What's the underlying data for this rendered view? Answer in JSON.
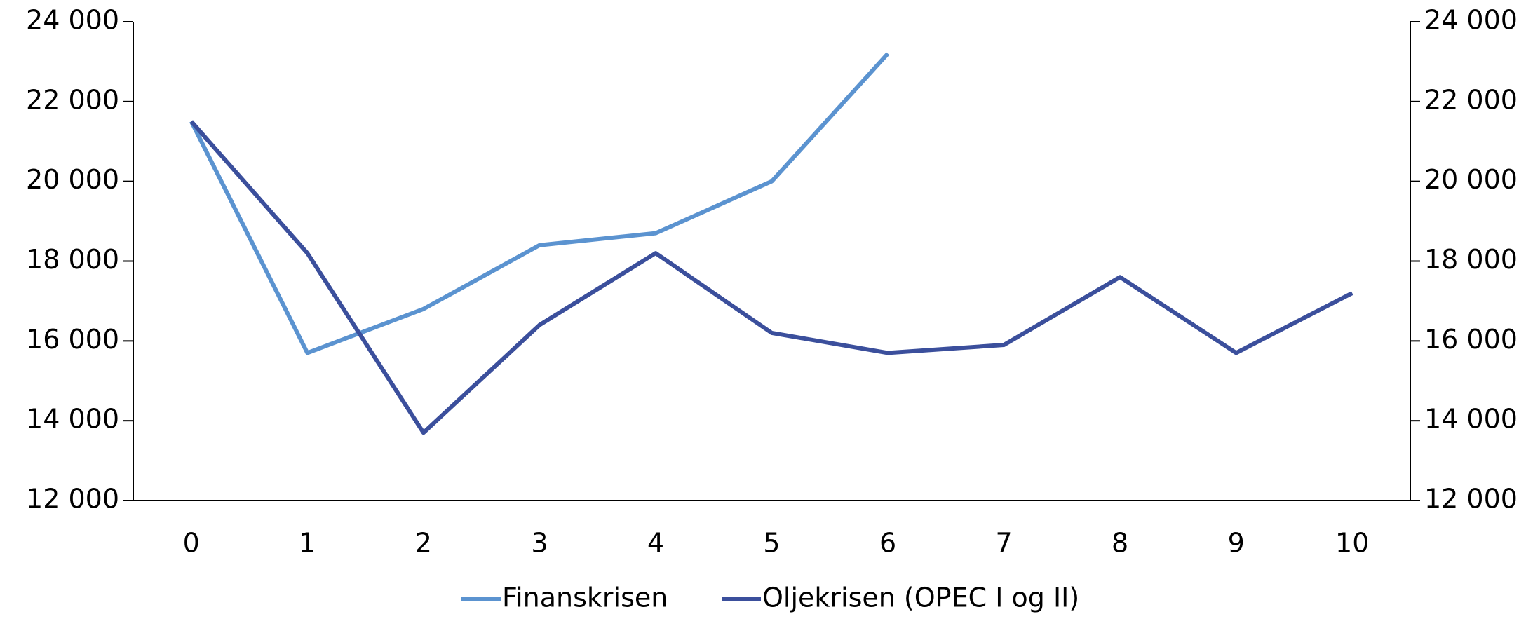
{
  "chart_data": {
    "type": "line",
    "x": [
      0,
      1,
      2,
      3,
      4,
      5,
      6,
      7,
      8,
      9,
      10
    ],
    "xlim": [
      -0.5,
      10.5
    ],
    "xticks": [
      0,
      1,
      2,
      3,
      4,
      5,
      6,
      7,
      8,
      9,
      10
    ],
    "ylim": [
      12000,
      24000
    ],
    "yticks": [
      {
        "value": 12000,
        "label": "12 000"
      },
      {
        "value": 14000,
        "label": "14 000"
      },
      {
        "value": 16000,
        "label": "16 000"
      },
      {
        "value": 18000,
        "label": "18 000"
      },
      {
        "value": 20000,
        "label": "20 000"
      },
      {
        "value": 22000,
        "label": "22 000"
      },
      {
        "value": 24000,
        "label": "24 000"
      }
    ],
    "grid": false,
    "series": [
      {
        "name": "Finanskrisen",
        "color": "#5b93d0",
        "values": [
          21500,
          15700,
          16800,
          18400,
          18700,
          20000,
          23200,
          null,
          null,
          null,
          null
        ]
      },
      {
        "name": "Oljekrisen (OPEC I og II)",
        "color": "#3b4f9c",
        "values": [
          21500,
          18200,
          13700,
          16400,
          18200,
          16200,
          15700,
          15900,
          17600,
          15700,
          17200
        ]
      }
    ]
  }
}
